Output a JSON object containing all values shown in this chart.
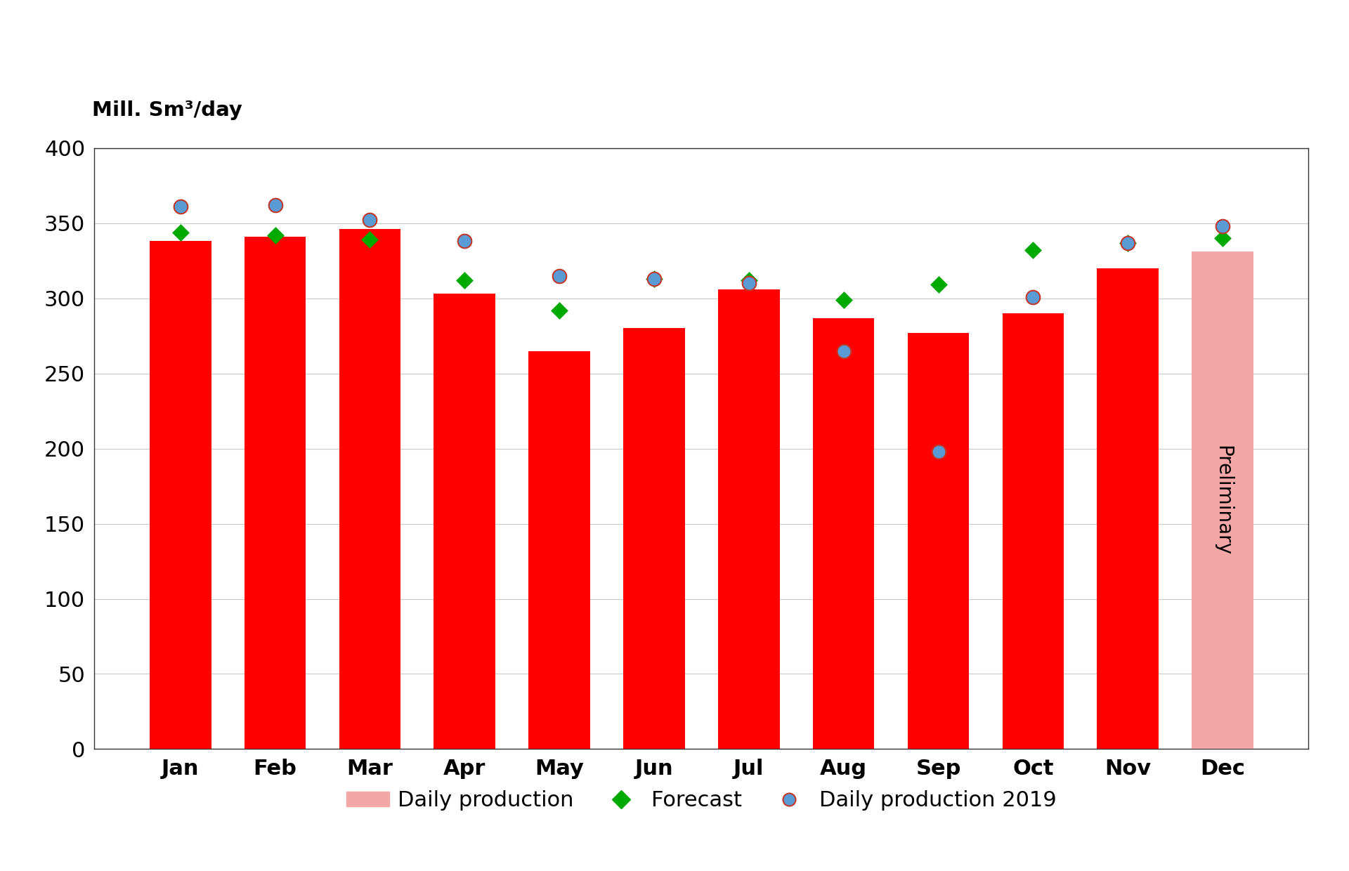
{
  "months": [
    "Jan",
    "Feb",
    "Mar",
    "Apr",
    "May",
    "Jun",
    "Jul",
    "Aug",
    "Sep",
    "Oct",
    "Nov",
    "Dec"
  ],
  "bar_values": [
    338,
    341,
    346,
    303,
    265,
    280,
    306,
    287,
    277,
    290,
    320,
    331
  ],
  "bar_colors": [
    "#FF0000",
    "#FF0000",
    "#FF0000",
    "#FF0000",
    "#FF0000",
    "#FF0000",
    "#FF0000",
    "#FF0000",
    "#FF0000",
    "#FF0000",
    "#FF0000",
    "#F4A7A7"
  ],
  "forecast_values": [
    344,
    342,
    339,
    312,
    292,
    313,
    312,
    299,
    309,
    332,
    337,
    340
  ],
  "prod2019_values": [
    361,
    362,
    352,
    338,
    315,
    313,
    310,
    265,
    198,
    301,
    337,
    348
  ],
  "forecast_color": "#00AA00",
  "prod2019_color": "#5B9BD5",
  "prod2019_edge_color": "#C0392B",
  "ylabel": "Mill. Sm³/day",
  "ylim": [
    0,
    400
  ],
  "yticks": [
    0,
    50,
    100,
    150,
    200,
    250,
    300,
    350,
    400
  ],
  "preliminary_label": "Preliminary",
  "preliminary_color": "#000000",
  "legend_daily": "Daily production",
  "legend_forecast": "Forecast",
  "legend_2019": "Daily production 2019",
  "background_color": "#FFFFFF",
  "grid_color": "#C8C8C8"
}
